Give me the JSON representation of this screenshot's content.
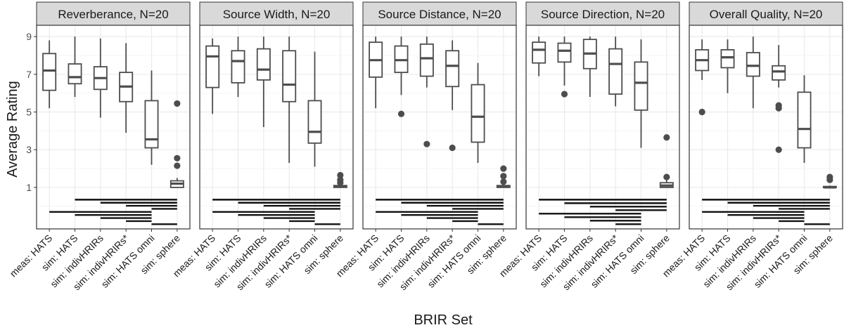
{
  "chart_data": {
    "type": "box",
    "xlabel": "BRIR Set",
    "ylabel": "Average Rating",
    "y_ticks": [
      1,
      3,
      5,
      7,
      9
    ],
    "ylim": [
      -1.2,
      9.6
    ],
    "categories": [
      "meas: HATS",
      "sim: HATS",
      "sim: indivHRIRs",
      "sim: indivHRIRs*",
      "sim: HATS omni",
      "sim: sphere"
    ],
    "colors": {
      "panel_border": "#333333",
      "strip_fill": "#d9d9d9",
      "grid_major": "#ebebeb",
      "grid_minor": "#f5f5f5",
      "box_stroke": "#4d4d4d",
      "outlier": "#4d4d4d",
      "sig_line": "#111111",
      "tick": "#333333"
    },
    "panels": [
      {
        "title": "Reverberance, N=20",
        "boxes": [
          {
            "label": "meas: HATS",
            "min": 5.2,
            "q1": 6.15,
            "median": 7.2,
            "q3": 8.1,
            "max": 8.8,
            "outliers": []
          },
          {
            "label": "sim: HATS",
            "min": 5.8,
            "q1": 6.5,
            "median": 6.85,
            "q3": 7.55,
            "max": 9.0,
            "outliers": []
          },
          {
            "label": "sim: indivHRIRs",
            "min": 4.7,
            "q1": 6.2,
            "median": 6.8,
            "q3": 7.4,
            "max": 8.9,
            "outliers": []
          },
          {
            "label": "sim: indivHRIRs*",
            "min": 3.9,
            "q1": 5.55,
            "median": 6.35,
            "q3": 7.1,
            "max": 8.65,
            "outliers": []
          },
          {
            "label": "sim: HATS omni",
            "min": 2.2,
            "q1": 3.1,
            "median": 3.55,
            "q3": 5.6,
            "max": 7.2,
            "outliers": []
          },
          {
            "label": "sim: sphere",
            "min": 1.0,
            "q1": 1.0,
            "median": 1.2,
            "q3": 1.35,
            "max": 1.5,
            "outliers": [
              5.45,
              2.55,
              2.15
            ]
          }
        ],
        "sig_pairs": [
          [
            1,
            5
          ],
          [
            2,
            5
          ],
          [
            3,
            5
          ],
          [
            4,
            5
          ],
          [
            0,
            4
          ],
          [
            1,
            4
          ],
          [
            2,
            4
          ],
          [
            3,
            4
          ],
          [
            4,
            5
          ]
        ]
      },
      {
        "title": "Source Width, N=20",
        "boxes": [
          {
            "label": "meas: HATS",
            "min": 4.9,
            "q1": 6.3,
            "median": 7.95,
            "q3": 8.5,
            "max": 8.9,
            "outliers": []
          },
          {
            "label": "sim: HATS",
            "min": 5.8,
            "q1": 6.55,
            "median": 7.7,
            "q3": 8.25,
            "max": 9.0,
            "outliers": []
          },
          {
            "label": "sim: indivHRIRs",
            "min": 4.2,
            "q1": 6.7,
            "median": 7.25,
            "q3": 8.35,
            "max": 9.0,
            "outliers": []
          },
          {
            "label": "sim: indivHRIRs*",
            "min": 2.3,
            "q1": 5.55,
            "median": 6.45,
            "q3": 8.25,
            "max": 9.0,
            "outliers": []
          },
          {
            "label": "sim: HATS omni",
            "min": 2.1,
            "q1": 3.35,
            "median": 3.95,
            "q3": 5.6,
            "max": 8.2,
            "outliers": []
          },
          {
            "label": "sim: sphere",
            "min": 1.0,
            "q1": 1.0,
            "median": 1.05,
            "q3": 1.1,
            "max": 1.2,
            "outliers": [
              1.65,
              1.4,
              1.25
            ]
          }
        ],
        "sig_pairs": [
          [
            0,
            5
          ],
          [
            1,
            5
          ],
          [
            2,
            5
          ],
          [
            3,
            5
          ],
          [
            0,
            4
          ],
          [
            1,
            4
          ],
          [
            2,
            4
          ],
          [
            3,
            4
          ],
          [
            4,
            5
          ]
        ]
      },
      {
        "title": "Source Distance, N=20",
        "boxes": [
          {
            "label": "meas: HATS",
            "min": 5.2,
            "q1": 6.85,
            "median": 7.75,
            "q3": 8.7,
            "max": 9.0,
            "outliers": []
          },
          {
            "label": "sim: HATS",
            "min": 5.9,
            "q1": 7.1,
            "median": 7.75,
            "q3": 8.5,
            "max": 9.0,
            "outliers": [
              4.9
            ]
          },
          {
            "label": "sim: indivHRIRs",
            "min": 6.3,
            "q1": 6.9,
            "median": 7.85,
            "q3": 8.6,
            "max": 9.0,
            "outliers": [
              3.3
            ]
          },
          {
            "label": "sim: indivHRIRs*",
            "min": 5.1,
            "q1": 6.35,
            "median": 7.45,
            "q3": 8.25,
            "max": 8.8,
            "outliers": [
              3.1
            ]
          },
          {
            "label": "sim: HATS omni",
            "min": 2.3,
            "q1": 3.4,
            "median": 4.75,
            "q3": 6.45,
            "max": 7.6,
            "outliers": []
          },
          {
            "label": "sim: sphere",
            "min": 1.0,
            "q1": 1.0,
            "median": 1.05,
            "q3": 1.1,
            "max": 1.2,
            "outliers": [
              2.0,
              1.6,
              1.3
            ]
          }
        ],
        "sig_pairs": [
          [
            0,
            5
          ],
          [
            1,
            5
          ],
          [
            2,
            5
          ],
          [
            3,
            5
          ],
          [
            0,
            4
          ],
          [
            1,
            4
          ],
          [
            2,
            4
          ],
          [
            3,
            4
          ],
          [
            4,
            5
          ]
        ]
      },
      {
        "title": "Source Direction, N=20",
        "boxes": [
          {
            "label": "meas: HATS",
            "min": 6.9,
            "q1": 7.6,
            "median": 8.3,
            "q3": 8.7,
            "max": 9.0,
            "outliers": []
          },
          {
            "label": "sim: HATS",
            "min": 6.4,
            "q1": 7.65,
            "median": 8.25,
            "q3": 8.65,
            "max": 9.0,
            "outliers": [
              5.95
            ]
          },
          {
            "label": "sim: indivHRIRs",
            "min": 5.8,
            "q1": 7.3,
            "median": 8.1,
            "q3": 8.85,
            "max": 9.0,
            "outliers": []
          },
          {
            "label": "sim: indivHRIRs*",
            "min": 5.3,
            "q1": 5.95,
            "median": 7.55,
            "q3": 8.35,
            "max": 9.0,
            "outliers": []
          },
          {
            "label": "sim: HATS omni",
            "min": 3.1,
            "q1": 5.1,
            "median": 6.55,
            "q3": 7.65,
            "max": 8.85,
            "outliers": []
          },
          {
            "label": "sim: sphere",
            "min": 1.0,
            "q1": 1.0,
            "median": 1.1,
            "q3": 1.25,
            "max": 1.4,
            "outliers": [
              3.65,
              1.55
            ]
          }
        ],
        "sig_pairs": [
          [
            0,
            5
          ],
          [
            1,
            5
          ],
          [
            2,
            5
          ],
          [
            3,
            5
          ],
          [
            0,
            4
          ],
          [
            1,
            4
          ],
          [
            2,
            4
          ],
          [
            3,
            4
          ]
        ]
      },
      {
        "title": "Overall Quality, N=20",
        "boxes": [
          {
            "label": "meas: HATS",
            "min": 6.7,
            "q1": 7.2,
            "median": 7.75,
            "q3": 8.3,
            "max": 8.85,
            "outliers": [
              5.0
            ]
          },
          {
            "label": "sim: HATS",
            "min": 6.0,
            "q1": 7.35,
            "median": 7.9,
            "q3": 8.3,
            "max": 8.85,
            "outliers": []
          },
          {
            "label": "sim: indivHRIRs",
            "min": 5.2,
            "q1": 6.9,
            "median": 7.45,
            "q3": 8.15,
            "max": 9.0,
            "outliers": []
          },
          {
            "label": "sim: indivHRIRs*",
            "min": 6.3,
            "q1": 6.7,
            "median": 7.15,
            "q3": 7.45,
            "max": 8.55,
            "outliers": [
              5.35,
              5.2,
              3.0
            ]
          },
          {
            "label": "sim: HATS omni",
            "min": 2.3,
            "q1": 3.1,
            "median": 4.1,
            "q3": 6.05,
            "max": 6.95,
            "outliers": []
          },
          {
            "label": "sim: sphere",
            "min": 1.0,
            "q1": 1.0,
            "median": 1.0,
            "q3": 1.05,
            "max": 1.1,
            "outliers": [
              1.55,
              1.4
            ]
          }
        ],
        "sig_pairs": [
          [
            0,
            5
          ],
          [
            1,
            5
          ],
          [
            2,
            5
          ],
          [
            3,
            5
          ],
          [
            0,
            4
          ],
          [
            1,
            4
          ],
          [
            2,
            4
          ],
          [
            3,
            4
          ],
          [
            4,
            5
          ]
        ]
      }
    ]
  }
}
